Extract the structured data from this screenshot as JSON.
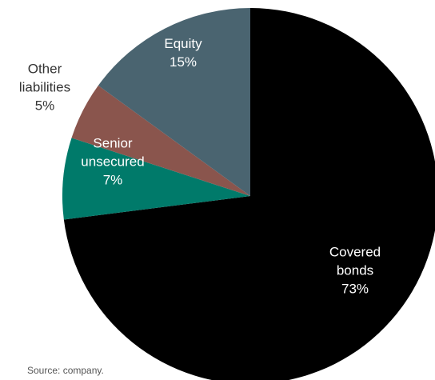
{
  "chart_data": {
    "type": "pie",
    "title": "",
    "slices": [
      {
        "label_lines": [
          "Covered",
          "bonds"
        ],
        "value": 73,
        "value_label": "73%",
        "color": "#000000",
        "label_color": "#ffffff"
      },
      {
        "label_lines": [
          "Senior",
          "unsecured"
        ],
        "value": 7,
        "value_label": "7%",
        "color": "#007a6a",
        "label_color": "#ffffff"
      },
      {
        "label_lines": [
          "Other",
          "liabilities"
        ],
        "value": 5,
        "value_label": "5%",
        "color": "#8a554d",
        "label_color": "#333333"
      },
      {
        "label_lines": [
          "Equity"
        ],
        "value": 15,
        "value_label": "15%",
        "color": "#4a6470",
        "label_color": "#ffffff"
      }
    ],
    "start": "12 o'clock",
    "direction": "clockwise"
  },
  "source": "Source: company."
}
